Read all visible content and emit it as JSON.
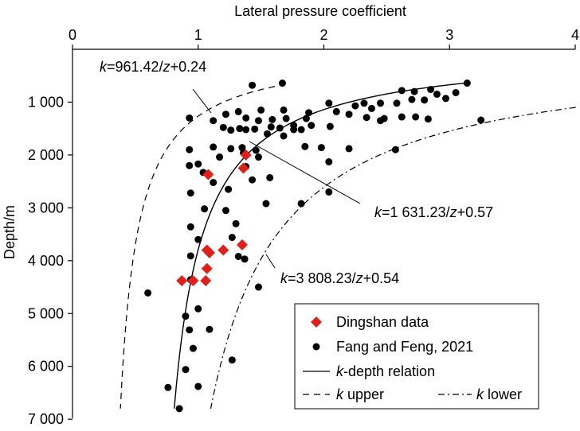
{
  "chart_data": {
    "type": "scatter",
    "xlabel": "Lateral pressure coefficient",
    "ylabel": "Depth/m",
    "xlim": [
      0,
      4
    ],
    "ylim": [
      7000,
      0
    ],
    "x_ticks": [
      0,
      1,
      2,
      3,
      4
    ],
    "x_tick_labels": [
      "0",
      "1",
      "2",
      "3",
      "4"
    ],
    "y_ticks": [
      1000,
      2000,
      3000,
      4000,
      5000,
      6000,
      7000
    ],
    "y_tick_labels": [
      "1 000",
      "2 000",
      "3 000",
      "4 000",
      "5 000",
      "6 000",
      "7 000"
    ],
    "x_axis_position": "top",
    "grid": false,
    "legend_position": "bottom-right",
    "series": [
      {
        "name": "Dingshan data",
        "kind": "scatter",
        "marker": "diamond",
        "color": "#e0201b",
        "points": [
          [
            1.38,
            2000
          ],
          [
            1.36,
            2250
          ],
          [
            1.08,
            2370
          ],
          [
            1.35,
            3700
          ],
          [
            1.07,
            3800
          ],
          [
            1.2,
            3800
          ],
          [
            1.09,
            3850
          ],
          [
            1.07,
            4150
          ],
          [
            0.87,
            4380
          ],
          [
            0.96,
            4380
          ],
          [
            1.06,
            4380
          ]
        ]
      },
      {
        "name": "Fang and Feng, 2021",
        "kind": "scatter",
        "marker": "circle",
        "color": "#000000",
        "points": [
          [
            1.43,
            680
          ],
          [
            1.67,
            640
          ],
          [
            2.04,
            1020
          ],
          [
            2.32,
            1020
          ],
          [
            2.45,
            1020
          ],
          [
            2.25,
            1070
          ],
          [
            2.38,
            1120
          ],
          [
            2.58,
            1020
          ],
          [
            2.7,
            950
          ],
          [
            2.9,
            850
          ],
          [
            2.97,
            930
          ],
          [
            3.14,
            640
          ],
          [
            3.05,
            820
          ],
          [
            2.85,
            760
          ],
          [
            2.62,
            780
          ],
          [
            2.72,
            800
          ],
          [
            2.8,
            960
          ],
          [
            2.1,
            1180
          ],
          [
            2.2,
            1230
          ],
          [
            2.34,
            1290
          ],
          [
            2.48,
            1310
          ],
          [
            2.62,
            1280
          ],
          [
            2.73,
            1280
          ],
          [
            2.83,
            1320
          ],
          [
            2.45,
            1350
          ],
          [
            2.05,
            1460
          ],
          [
            1.88,
            1200
          ],
          [
            1.5,
            1150
          ],
          [
            1.68,
            1150
          ],
          [
            1.32,
            1180
          ],
          [
            1.22,
            1230
          ],
          [
            1.38,
            1300
          ],
          [
            1.48,
            1350
          ],
          [
            1.59,
            1330
          ],
          [
            1.7,
            1310
          ],
          [
            1.86,
            1310
          ],
          [
            1.58,
            1470
          ],
          [
            1.65,
            1490
          ],
          [
            1.82,
            1520
          ],
          [
            1.76,
            1440
          ],
          [
            1.9,
            1440
          ],
          [
            1.2,
            1480
          ],
          [
            1.33,
            1500
          ],
          [
            1.45,
            1510
          ],
          [
            1.55,
            1600
          ],
          [
            1.68,
            1640
          ],
          [
            1.76,
            1520
          ],
          [
            0.93,
            1300
          ],
          [
            1.12,
            1350
          ],
          [
            1.26,
            1530
          ],
          [
            1.38,
            1520
          ],
          [
            1.12,
            1850
          ],
          [
            0.93,
            1900
          ],
          [
            1.26,
            1880
          ],
          [
            1.35,
            1860
          ],
          [
            1.46,
            1910
          ],
          [
            1.85,
            1840
          ],
          [
            1.98,
            1860
          ],
          [
            2.2,
            1880
          ],
          [
            1.36,
            1960
          ],
          [
            1.48,
            2040
          ],
          [
            0.93,
            2200
          ],
          [
            1.17,
            2040
          ],
          [
            1.0,
            2170
          ],
          [
            1.38,
            2220
          ],
          [
            1.04,
            2330
          ],
          [
            1.12,
            2520
          ],
          [
            1.43,
            2470
          ],
          [
            1.57,
            2430
          ],
          [
            2.04,
            2130
          ],
          [
            2.57,
            1900
          ],
          [
            0.94,
            2720
          ],
          [
            1.24,
            2650
          ],
          [
            1.05,
            3020
          ],
          [
            1.22,
            3050
          ],
          [
            1.3,
            3300
          ],
          [
            1.54,
            2920
          ],
          [
            1.82,
            2920
          ],
          [
            2.04,
            2700
          ],
          [
            3.25,
            1340
          ],
          [
            0.94,
            3360
          ],
          [
            1.0,
            3600
          ],
          [
            0.94,
            3910
          ],
          [
            1.27,
            3560
          ],
          [
            1.32,
            3920
          ],
          [
            1.37,
            3970
          ],
          [
            0.94,
            4360
          ],
          [
            1.48,
            4500
          ],
          [
            0.6,
            4610
          ],
          [
            1.0,
            4910
          ],
          [
            0.9,
            5050
          ],
          [
            0.93,
            5310
          ],
          [
            1.09,
            5300
          ],
          [
            0.96,
            5660
          ],
          [
            0.9,
            6060
          ],
          [
            1.27,
            5880
          ],
          [
            0.76,
            6400
          ],
          [
            1.0,
            6380
          ],
          [
            0.85,
            6800
          ]
        ]
      },
      {
        "name": "k-depth relation",
        "kind": "curve",
        "style": "solid",
        "equation": "k=1631.23/z+0.57",
        "A": 1631.23,
        "B": 0.57,
        "z_range": [
          640,
          6800
        ]
      },
      {
        "name": "k upper",
        "kind": "curve",
        "style": "dashed",
        "equation": "k=961.42/z+0.24",
        "A": 961.42,
        "B": 0.24,
        "z_range": [
          660,
          6800
        ]
      },
      {
        "name": "k lower",
        "kind": "curve",
        "style": "dash-dot",
        "equation": "k=3808.23/z+0.54",
        "A": 3808.23,
        "B": 0.54,
        "z_range": [
          1090,
          6800
        ]
      }
    ],
    "annotations": {
      "upper_k": "k",
      "upper_rest": "=961.42/",
      "upper_z": "z",
      "upper_tail": "+0.24",
      "mid_k": "k",
      "mid_rest": "=1 631.23/",
      "mid_z": "z",
      "mid_tail": "+0.57",
      "lower_k": "k",
      "lower_rest": "=3 808.23/",
      "lower_z": "z",
      "lower_tail": "+0.54"
    },
    "legend": {
      "dingshan": "Dingshan data",
      "fang": "Fang and Feng, 2021",
      "relation_k": "k",
      "relation_rest": "-depth relation",
      "upper_k": "k",
      "upper_rest": " upper",
      "lower_k": "k",
      "lower_rest": " lower"
    }
  }
}
